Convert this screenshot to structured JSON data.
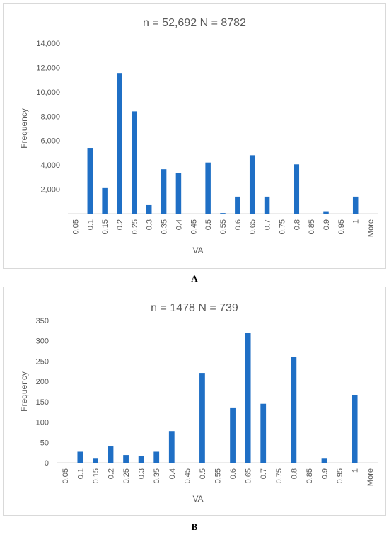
{
  "chart_data": [
    {
      "type": "bar",
      "title": "n = 52,692 N = 8782",
      "xlabel": "VA",
      "ylabel": "Frequency",
      "ylim": [
        0,
        14000
      ],
      "ytick_labels": [
        "",
        "2,000",
        "4,000",
        "6,000",
        "8,000",
        "10,000",
        "12,000",
        "14,000"
      ],
      "categories": [
        "0.05",
        "0.1",
        "0.15",
        "0.2",
        "0.25",
        "0.3",
        "0.35",
        "0.4",
        "0.45",
        "0.5",
        "0.55",
        "0.6",
        "0.65",
        "0.7",
        "0.75",
        "0.8",
        "0.85",
        "0.9",
        "0.95",
        "1",
        "More"
      ],
      "values": [
        0,
        5400,
        2100,
        11550,
        8400,
        700,
        3650,
        3350,
        0,
        4200,
        50,
        1400,
        4800,
        1400,
        0,
        4050,
        0,
        200,
        0,
        1400,
        0
      ],
      "grid": false,
      "bar_color": "#1f6fc5"
    },
    {
      "type": "bar",
      "title": "n = 1478 N = 739",
      "xlabel": "VA",
      "ylabel": "Frequency",
      "ylim": [
        0,
        350
      ],
      "ytick_labels": [
        "0",
        "50",
        "100",
        "150",
        "200",
        "250",
        "300",
        "350"
      ],
      "categories": [
        "0.05",
        "0.1",
        "0.15",
        "0.2",
        "0.25",
        "0.3",
        "0.35",
        "0.4",
        "0.45",
        "0.5",
        "0.55",
        "0.6",
        "0.65",
        "0.7",
        "0.75",
        "0.8",
        "0.85",
        "0.9",
        "0.95",
        "1",
        "More"
      ],
      "values": [
        0,
        27,
        10,
        40,
        19,
        17,
        27,
        78,
        0,
        221,
        0,
        136,
        320,
        145,
        0,
        261,
        0,
        10,
        0,
        166,
        0
      ],
      "grid": false,
      "bar_color": "#1f6fc5"
    }
  ],
  "panel_labels": [
    "A",
    "B"
  ]
}
